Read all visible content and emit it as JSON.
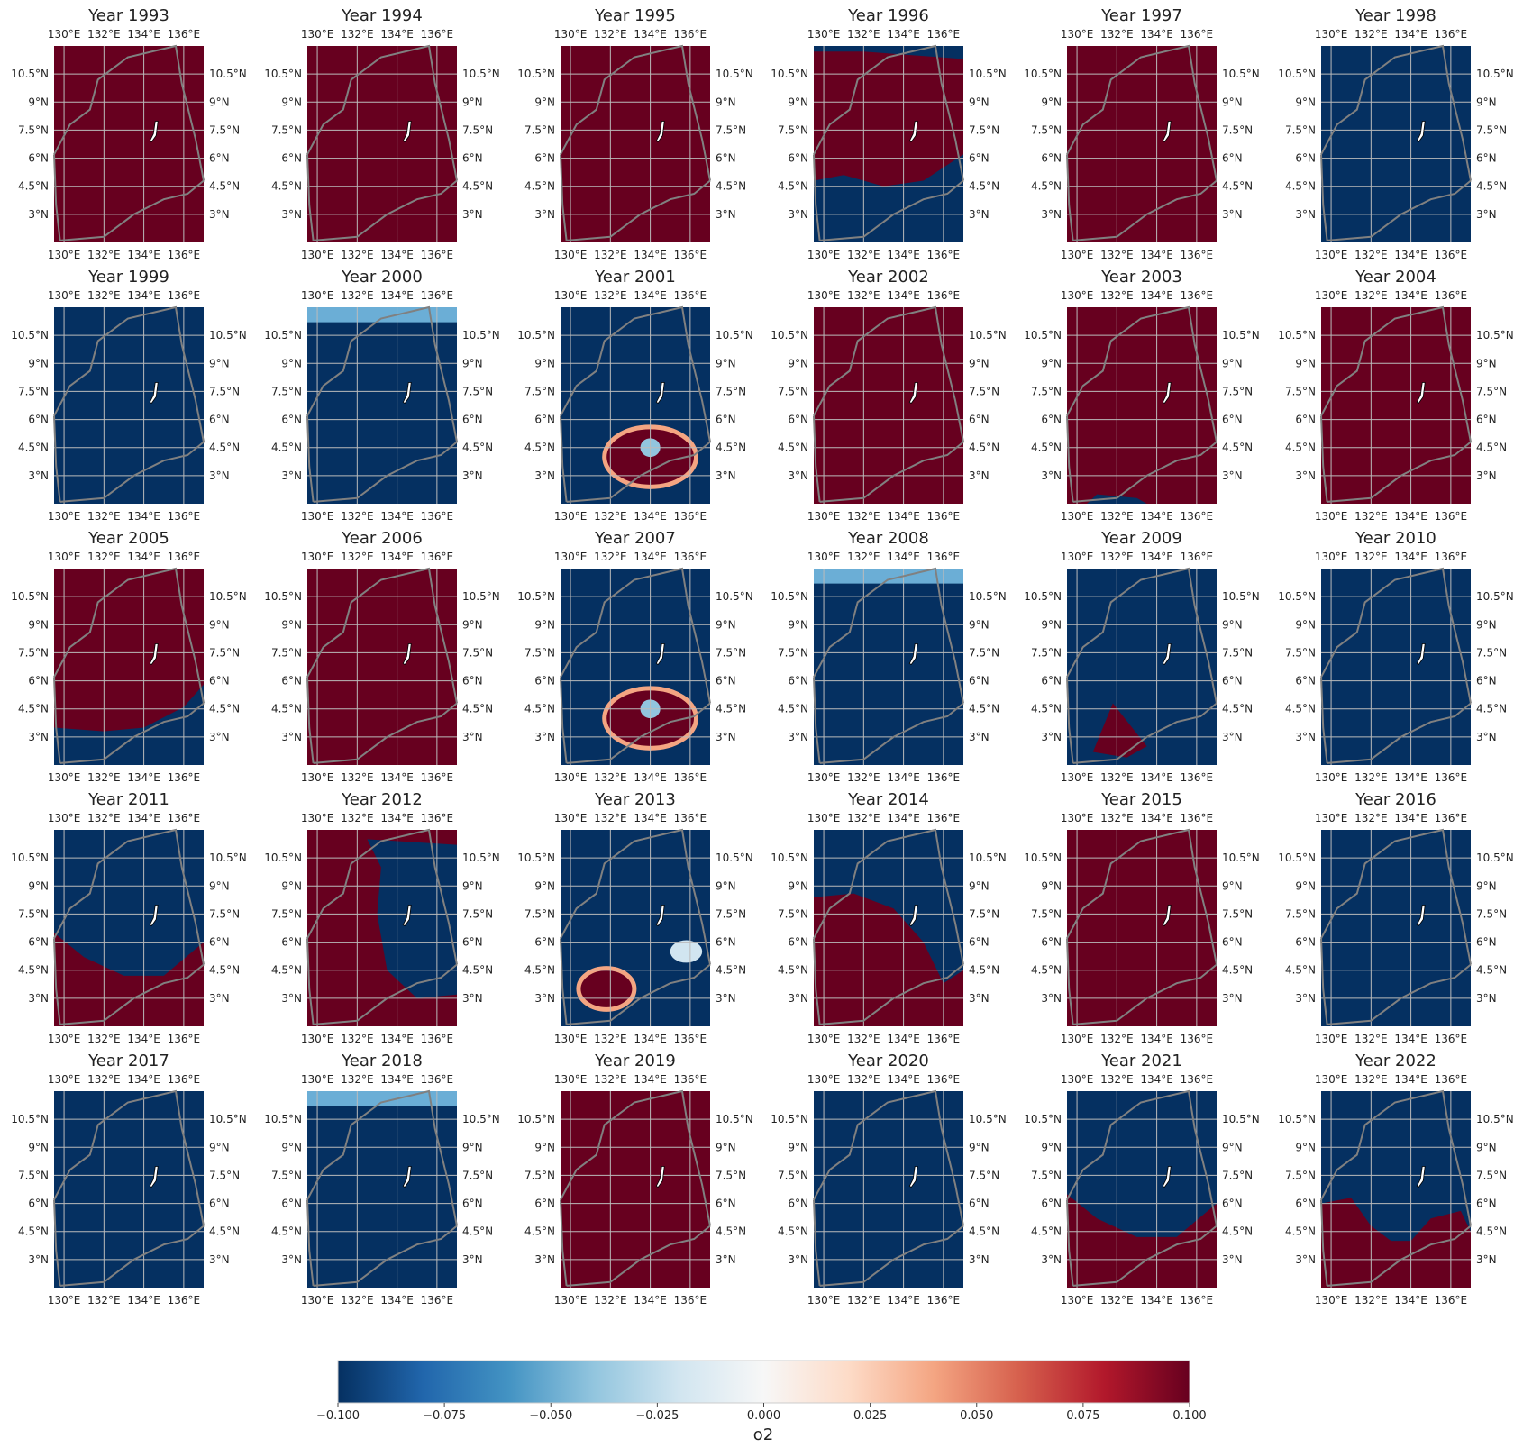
{
  "chart_data": {
    "type": "heatmap",
    "layout": {
      "rows": 5,
      "cols": 6
    },
    "variable": "o2",
    "colormap": "RdBu_r",
    "color_range": [
      -0.1,
      0.1
    ],
    "colorbar": {
      "label": "o2",
      "ticks": [
        -0.1,
        -0.075,
        -0.05,
        -0.025,
        0.0,
        0.025,
        0.05,
        0.075,
        0.1
      ],
      "tick_labels": [
        "−0.100",
        "−0.075",
        "−0.050",
        "−0.025",
        "0.000",
        "0.025",
        "0.050",
        "0.075",
        "0.100"
      ]
    },
    "lon_range": [
      129.5,
      137.0
    ],
    "lat_range": [
      1.5,
      12.0
    ],
    "lon_ticks": [
      130,
      132,
      134,
      136
    ],
    "lon_tick_labels": [
      "130°E",
      "132°E",
      "134°E",
      "136°E"
    ],
    "lat_ticks": [
      3,
      4.5,
      6,
      7.5,
      9,
      10.5
    ],
    "lat_tick_labels": [
      "3°N",
      "4.5°N",
      "6°N",
      "7.5°N",
      "9°N",
      "10.5°N"
    ],
    "grid": true,
    "panels": [
      {
        "title": "Year 1993",
        "pattern": "red"
      },
      {
        "title": "Year 1994",
        "pattern": "red"
      },
      {
        "title": "Year 1995",
        "pattern": "red"
      },
      {
        "title": "Year 1996",
        "pattern": "red_band"
      },
      {
        "title": "Year 1997",
        "pattern": "red"
      },
      {
        "title": "Year 1998",
        "pattern": "blue"
      },
      {
        "title": "Year 1999",
        "pattern": "blue"
      },
      {
        "title": "Year 2000",
        "pattern": "blue_top_light"
      },
      {
        "title": "Year 2001",
        "pattern": "blue_red_blob_south"
      },
      {
        "title": "Year 2002",
        "pattern": "red"
      },
      {
        "title": "Year 2003",
        "pattern": "red_blue_south_edge"
      },
      {
        "title": "Year 2004",
        "pattern": "red"
      },
      {
        "title": "Year 2005",
        "pattern": "red_blue_south"
      },
      {
        "title": "Year 2006",
        "pattern": "red"
      },
      {
        "title": "Year 2007",
        "pattern": "blue_red_blob_south"
      },
      {
        "title": "Year 2008",
        "pattern": "blue_top_light"
      },
      {
        "title": "Year 2009",
        "pattern": "blue_red_small_sw"
      },
      {
        "title": "Year 2010",
        "pattern": "blue"
      },
      {
        "title": "Year 2011",
        "pattern": "blue_red_south"
      },
      {
        "title": "Year 2012",
        "pattern": "red_blue_east"
      },
      {
        "title": "Year 2013",
        "pattern": "blue_red_blobs_sw"
      },
      {
        "title": "Year 2014",
        "pattern": "blue_red_southwest"
      },
      {
        "title": "Year 2015",
        "pattern": "red"
      },
      {
        "title": "Year 2016",
        "pattern": "blue"
      },
      {
        "title": "Year 2017",
        "pattern": "blue"
      },
      {
        "title": "Year 2018",
        "pattern": "blue_top_light"
      },
      {
        "title": "Year 2019",
        "pattern": "red"
      },
      {
        "title": "Year 2020",
        "pattern": "blue"
      },
      {
        "title": "Year 2021",
        "pattern": "blue_red_south"
      },
      {
        "title": "Year 2022",
        "pattern": "blue_red_south_wave"
      }
    ]
  }
}
